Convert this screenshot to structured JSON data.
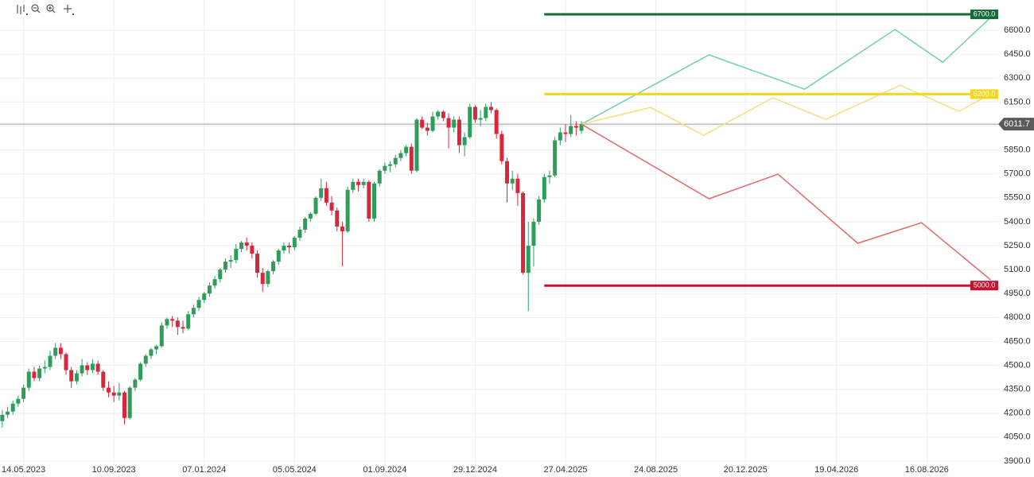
{
  "chart_data": {
    "type": "candlestick",
    "x": [
      "2023-04-16",
      "2023-04-23",
      "2023-04-30",
      "2023-05-07",
      "2023-05-14",
      "2023-05-21",
      "2023-05-28",
      "2023-06-04",
      "2023-06-11",
      "2023-06-18",
      "2023-06-25",
      "2023-07-02",
      "2023-07-09",
      "2023-07-16",
      "2023-07-23",
      "2023-07-30",
      "2023-08-06",
      "2023-08-13",
      "2023-08-20",
      "2023-08-27",
      "2023-09-03",
      "2023-09-10",
      "2023-09-17",
      "2023-09-24",
      "2023-10-01",
      "2023-10-08",
      "2023-10-15",
      "2023-10-22",
      "2023-10-29",
      "2023-11-05",
      "2023-11-12",
      "2023-11-19",
      "2023-11-26",
      "2023-12-03",
      "2023-12-10",
      "2023-12-17",
      "2023-12-24",
      "2023-12-31",
      "2024-01-07",
      "2024-01-14",
      "2024-01-21",
      "2024-01-28",
      "2024-02-04",
      "2024-02-11",
      "2024-02-18",
      "2024-02-25",
      "2024-03-03",
      "2024-03-10",
      "2024-03-17",
      "2024-03-24",
      "2024-03-31",
      "2024-04-07",
      "2024-04-14",
      "2024-04-21",
      "2024-04-28",
      "2024-05-05",
      "2024-05-12",
      "2024-05-19",
      "2024-05-26",
      "2024-06-02",
      "2024-06-09",
      "2024-06-16",
      "2024-06-23",
      "2024-06-30",
      "2024-07-07",
      "2024-07-14",
      "2024-07-21",
      "2024-07-28",
      "2024-08-04",
      "2024-08-11",
      "2024-08-18",
      "2024-08-25",
      "2024-09-01",
      "2024-09-08",
      "2024-09-15",
      "2024-09-22",
      "2024-09-29",
      "2024-10-06",
      "2024-10-13",
      "2024-10-20",
      "2024-10-27",
      "2024-11-03",
      "2024-11-10",
      "2024-11-17",
      "2024-11-24",
      "2024-12-01",
      "2024-12-08",
      "2024-12-15",
      "2024-12-22",
      "2024-12-29",
      "2025-01-05",
      "2025-01-12",
      "2025-01-19",
      "2025-01-26",
      "2025-02-02",
      "2025-02-09",
      "2025-02-16",
      "2025-02-23",
      "2025-03-02",
      "2025-03-09",
      "2025-03-16",
      "2025-03-23",
      "2025-03-30",
      "2025-04-06",
      "2025-04-13",
      "2025-04-20",
      "2025-04-27",
      "2025-05-04",
      "2025-05-11",
      "2025-05-18"
    ],
    "open": [
      4150,
      4190,
      4210,
      4260,
      4290,
      4360,
      4460,
      4420,
      4480,
      4490,
      4560,
      4610,
      4570,
      4470,
      4400,
      4450,
      4500,
      4470,
      4510,
      4460,
      4360,
      4330,
      4310,
      4330,
      4170,
      4360,
      4410,
      4510,
      4560,
      4600,
      4620,
      4750,
      4790,
      4780,
      4740,
      4730,
      4820,
      4860,
      4910,
      4950,
      5000,
      5040,
      5100,
      5150,
      5160,
      5230,
      5270,
      5250,
      5200,
      5080,
      5010,
      5090,
      5150,
      5220,
      5250,
      5240,
      5300,
      5350,
      5420,
      5450,
      5550,
      5610,
      5520,
      5470,
      5370,
      5340,
      5600,
      5650,
      5630,
      5650,
      5420,
      5640,
      5720,
      5750,
      5760,
      5800,
      5830,
      5870,
      5720,
      6040,
      5990,
      5970,
      6060,
      6090,
      6050,
      5990,
      6040,
      5880,
      5930,
      6120,
      6040,
      6050,
      6120,
      6100,
      5950,
      5780,
      5640,
      5670,
      5580,
      5080,
      5250,
      5400,
      5540,
      5680,
      5690,
      5910,
      5960,
      5950,
      6000,
      5970
    ],
    "high": [
      4220,
      4240,
      4280,
      4310,
      4380,
      4480,
      4490,
      4500,
      4530,
      4590,
      4640,
      4640,
      4580,
      4490,
      4470,
      4540,
      4520,
      4540,
      4530,
      4470,
      4400,
      4370,
      4390,
      4340,
      4370,
      4420,
      4520,
      4570,
      4610,
      4630,
      4770,
      4800,
      4810,
      4800,
      4780,
      4840,
      4880,
      4930,
      4960,
      5020,
      5060,
      5110,
      5170,
      5190,
      5260,
      5280,
      5300,
      5270,
      5220,
      5110,
      5100,
      5160,
      5230,
      5270,
      5270,
      5310,
      5370,
      5430,
      5460,
      5560,
      5670,
      5650,
      5560,
      5490,
      5400,
      5620,
      5670,
      5670,
      5670,
      5660,
      5650,
      5730,
      5770,
      5780,
      5820,
      5850,
      5880,
      5890,
      6050,
      6060,
      6020,
      6090,
      6100,
      6100,
      6080,
      6060,
      6060,
      5960,
      6140,
      6130,
      6100,
      6140,
      6150,
      6110,
      5970,
      5800,
      5720,
      5700,
      5590,
      5400,
      5420,
      5560,
      5700,
      5720,
      5930,
      5990,
      6010,
      6070,
      6030,
      6030
    ],
    "low": [
      4110,
      4170,
      4190,
      4240,
      4270,
      4340,
      4400,
      4400,
      4450,
      4470,
      4540,
      4540,
      4440,
      4360,
      4380,
      4430,
      4440,
      4450,
      4440,
      4340,
      4300,
      4270,
      4280,
      4130,
      4160,
      4340,
      4400,
      4490,
      4540,
      4570,
      4610,
      4730,
      4740,
      4690,
      4700,
      4720,
      4800,
      4840,
      4890,
      4930,
      4980,
      5020,
      5080,
      5110,
      5140,
      5210,
      5220,
      5170,
      5050,
      4960,
      4990,
      5070,
      5130,
      5200,
      5200,
      5220,
      5280,
      5330,
      5400,
      5440,
      5530,
      5500,
      5440,
      5340,
      5120,
      5330,
      5580,
      5590,
      5610,
      5400,
      5400,
      5620,
      5700,
      5710,
      5740,
      5780,
      5810,
      5700,
      5710,
      5980,
      5940,
      5960,
      6040,
      6030,
      5860,
      5960,
      5830,
      5810,
      5920,
      6020,
      6000,
      6030,
      6080,
      5920,
      5760,
      5520,
      5600,
      5500,
      5070,
      4840,
      5120,
      5380,
      5520,
      5640,
      5680,
      5880,
      5900,
      5930,
      5940,
      5950
    ],
    "close": [
      4190,
      4210,
      4260,
      4290,
      4360,
      4460,
      4420,
      4480,
      4490,
      4560,
      4610,
      4570,
      4470,
      4400,
      4450,
      4500,
      4470,
      4510,
      4460,
      4360,
      4330,
      4310,
      4330,
      4170,
      4360,
      4410,
      4510,
      4560,
      4600,
      4620,
      4750,
      4790,
      4780,
      4740,
      4730,
      4820,
      4860,
      4910,
      4950,
      5000,
      5040,
      5100,
      5150,
      5160,
      5230,
      5270,
      5250,
      5200,
      5080,
      5010,
      5090,
      5150,
      5220,
      5250,
      5240,
      5300,
      5350,
      5420,
      5450,
      5550,
      5610,
      5520,
      5470,
      5370,
      5340,
      5600,
      5650,
      5630,
      5650,
      5420,
      5640,
      5720,
      5750,
      5760,
      5800,
      5830,
      5870,
      5720,
      6040,
      5990,
      5970,
      6060,
      6090,
      6050,
      5990,
      6040,
      5880,
      5930,
      6120,
      6040,
      6050,
      6120,
      6100,
      5950,
      5780,
      5640,
      5670,
      5580,
      5080,
      5250,
      5400,
      5540,
      5680,
      5690,
      5910,
      5960,
      5950,
      6000,
      5990,
      6011.7
    ],
    "up_color": "#2e9d5c",
    "down_color": "#d9263a",
    "last_price_color": "#5a5a5a",
    "forecasts": [
      {
        "color": "#72d0aa",
        "x": [
          "2025-05-18",
          "2025-11-02",
          "2026-03-08",
          "2026-07-05",
          "2026-09-06",
          "2026-11-08"
        ],
        "values": [
          6011.7,
          6446,
          6231,
          6605,
          6400,
          6680
        ]
      },
      {
        "color": "#f7de80",
        "x": [
          "2025-05-18",
          "2025-08-17",
          "2025-10-26",
          "2026-01-25",
          "2026-04-05",
          "2026-07-12",
          "2026-09-27",
          "2026-11-08"
        ],
        "values": [
          6011.7,
          6117,
          5942,
          6177,
          6042,
          6256,
          6092,
          6200
        ]
      },
      {
        "color": "#e36a6a",
        "x": [
          "2025-05-18",
          "2025-11-02",
          "2026-02-01",
          "2026-05-17",
          "2026-08-09",
          "2026-11-08"
        ],
        "values": [
          6011.7,
          5544,
          5698,
          5265,
          5394,
          5036
        ]
      }
    ],
    "levels": [
      {
        "value": 6700,
        "label": "6700.0",
        "color": "#15693a",
        "start": "2025-03-30"
      },
      {
        "value": 6200,
        "label": "6200.0",
        "color": "#f2d81c",
        "start": "2025-03-30"
      },
      {
        "value": 5000,
        "label": "5000.0",
        "color": "#c8102e",
        "start": "2025-03-30"
      }
    ],
    "xlim": [
      "2023-04-13",
      "2026-11-18"
    ],
    "xticks": [
      {
        "value": "2023-05-14",
        "label": "14.05.2023"
      },
      {
        "value": "2023-09-10",
        "label": "10.09.2023"
      },
      {
        "value": "2024-01-07",
        "label": "07.01.2024"
      },
      {
        "value": "2024-05-05",
        "label": "05.05.2024"
      },
      {
        "value": "2024-09-01",
        "label": "01.09.2024"
      },
      {
        "value": "2024-12-29",
        "label": "29.12.2024"
      },
      {
        "value": "2025-04-27",
        "label": "27.04.2025"
      },
      {
        "value": "2025-08-24",
        "label": "24.08.2025"
      },
      {
        "value": "2025-12-20",
        "label": "20.12.2025"
      },
      {
        "value": "2026-04-19",
        "label": "19.04.2026"
      },
      {
        "value": "2026-08-16",
        "label": "16.08.2026"
      }
    ],
    "ylim": [
      3800,
      6790
    ],
    "yticks": [
      {
        "value": 3900,
        "label": "3900.0"
      },
      {
        "value": 4050,
        "label": "4050.0"
      },
      {
        "value": 4200,
        "label": "4200.0"
      },
      {
        "value": 4350,
        "label": "4350.0"
      },
      {
        "value": 4500,
        "label": "4500.0"
      },
      {
        "value": 4650,
        "label": "4650.0"
      },
      {
        "value": 4800,
        "label": "4800.0"
      },
      {
        "value": 4950,
        "label": "4950.0"
      },
      {
        "value": 5100,
        "label": "5100.0"
      },
      {
        "value": 5250,
        "label": "5250.0"
      },
      {
        "value": 5400,
        "label": "5400.0"
      },
      {
        "value": 5550,
        "label": "5550.0"
      },
      {
        "value": 5700,
        "label": "5700.0"
      },
      {
        "value": 5850,
        "label": "5850.0"
      },
      {
        "value": 6000,
        "label": "6000.0"
      },
      {
        "value": 6150,
        "label": "6150.0"
      },
      {
        "value": 6300,
        "label": "6300.0"
      },
      {
        "value": 6450,
        "label": "6450.0"
      },
      {
        "value": 6600,
        "label": "6600.0"
      }
    ],
    "grid": true
  }
}
